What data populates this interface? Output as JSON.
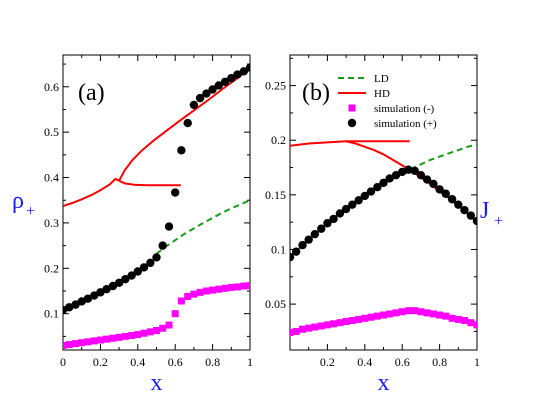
{
  "chart_data": [
    {
      "type": "line",
      "panel_label": "(a)",
      "xlabel": "x",
      "ylabel_main": "ρ",
      "ylabel_sub": "+",
      "xlim": [
        0,
        1
      ],
      "ylim": [
        0.02,
        0.67
      ],
      "xticks": [
        0,
        0.2,
        0.4,
        0.6,
        0.8,
        1
      ],
      "xtick_labels": [
        "0",
        "0.2",
        "0.4",
        "0.6",
        "0.8",
        "1"
      ],
      "yticks": [
        0.1,
        0.2,
        0.3,
        0.4,
        0.5,
        0.6
      ],
      "ytick_labels": [
        "0.1",
        "0.2",
        "0.3",
        "0.4",
        "0.5",
        "0.6"
      ],
      "colors": {
        "LD": "#1a9a1a",
        "HD": "#ff0000",
        "sim_minus": "#ff00ff",
        "sim_plus": "#000000"
      },
      "series": [
        {
          "key": "LD",
          "style": "dashed",
          "x": [
            0.5,
            0.55,
            0.6,
            0.65,
            0.7,
            0.75,
            0.8,
            0.85,
            0.9,
            0.95,
            1.0
          ],
          "y": [
            0.232,
            0.248,
            0.262,
            0.276,
            0.288,
            0.3,
            0.311,
            0.322,
            0.332,
            0.341,
            0.35
          ]
        },
        {
          "key": "HD",
          "style": "solid",
          "x": [
            0.0,
            0.05,
            0.1,
            0.15,
            0.2,
            0.25,
            0.28,
            0.3,
            0.33,
            0.38,
            0.45,
            0.5,
            0.55,
            0.6,
            0.63
          ],
          "y": [
            0.337,
            0.344,
            0.352,
            0.361,
            0.372,
            0.385,
            0.397,
            0.393,
            0.387,
            0.384,
            0.383,
            0.383,
            0.383,
            0.383,
            0.383
          ]
        },
        {
          "key": "HD",
          "style": "solid",
          "x": [
            0.3,
            0.33,
            0.37,
            0.42,
            0.48,
            0.55,
            0.62,
            0.7,
            0.78,
            0.85,
            0.92,
            1.0
          ],
          "y": [
            0.393,
            0.416,
            0.438,
            0.459,
            0.48,
            0.502,
            0.524,
            0.548,
            0.572,
            0.594,
            0.615,
            0.64
          ]
        },
        {
          "key": "sim_plus",
          "style": "marker-circle",
          "x": [
            0.0,
            0.033,
            0.067,
            0.1,
            0.133,
            0.167,
            0.2,
            0.233,
            0.267,
            0.3,
            0.333,
            0.367,
            0.4,
            0.433,
            0.467,
            0.5,
            0.533,
            0.567,
            0.6,
            0.633,
            0.667,
            0.7,
            0.733,
            0.767,
            0.8,
            0.833,
            0.867,
            0.9,
            0.933,
            0.967,
            1.0
          ],
          "y": [
            0.108,
            0.114,
            0.12,
            0.127,
            0.133,
            0.14,
            0.147,
            0.154,
            0.161,
            0.168,
            0.176,
            0.184,
            0.193,
            0.202,
            0.212,
            0.224,
            0.25,
            0.292,
            0.367,
            0.46,
            0.52,
            0.56,
            0.575,
            0.585,
            0.594,
            0.603,
            0.611,
            0.619,
            0.627,
            0.634,
            0.642
          ]
        },
        {
          "key": "sim_minus",
          "style": "marker-square",
          "x": [
            0.0,
            0.033,
            0.067,
            0.1,
            0.133,
            0.167,
            0.2,
            0.233,
            0.267,
            0.3,
            0.333,
            0.367,
            0.4,
            0.433,
            0.467,
            0.5,
            0.533,
            0.567,
            0.6,
            0.633,
            0.667,
            0.7,
            0.733,
            0.767,
            0.8,
            0.833,
            0.867,
            0.9,
            0.933,
            0.967,
            1.0
          ],
          "y": [
            0.03,
            0.032,
            0.034,
            0.036,
            0.038,
            0.04,
            0.042,
            0.044,
            0.046,
            0.048,
            0.05,
            0.052,
            0.054,
            0.057,
            0.06,
            0.063,
            0.068,
            0.075,
            0.1,
            0.128,
            0.138,
            0.143,
            0.147,
            0.15,
            0.152,
            0.154,
            0.156,
            0.158,
            0.159,
            0.161,
            0.162
          ]
        }
      ]
    },
    {
      "type": "line",
      "panel_label": "(b)",
      "xlabel": "x",
      "ylabel_main": "J",
      "ylabel_sub": "+",
      "xlim": [
        0,
        1
      ],
      "ylim": [
        0.008,
        0.278
      ],
      "xticks": [
        0.2,
        0.4,
        0.6,
        0.8,
        1
      ],
      "xtick_labels": [
        "0.2",
        "0.4",
        "0.6",
        "0.8",
        "1"
      ],
      "yticks": [
        0.05,
        0.1,
        0.15,
        0.2,
        0.25
      ],
      "ytick_labels": [
        "0.05",
        "0.1",
        "0.15",
        "0.2",
        "0.25"
      ],
      "colors": {
        "LD": "#1a9a1a",
        "HD": "#ff0000",
        "sim_minus": "#ff00ff",
        "sim_plus": "#000000"
      },
      "legend": [
        {
          "key": "LD",
          "label": "LD",
          "style": "dashed"
        },
        {
          "key": "HD",
          "label": "HD",
          "style": "solid"
        },
        {
          "key": "sim_minus",
          "label": "simulation (-)",
          "style": "marker-square"
        },
        {
          "key": "sim_plus",
          "label": "simulation (+)",
          "style": "marker-circle"
        }
      ],
      "series": [
        {
          "key": "LD",
          "style": "dashed",
          "x": [
            0.0,
            0.05,
            0.1,
            0.15,
            0.2,
            0.25,
            0.3,
            0.35,
            0.4,
            0.45,
            0.5,
            0.55,
            0.6,
            0.65,
            0.7,
            0.75,
            0.8,
            0.85,
            0.9,
            0.95,
            1.0
          ],
          "y": [
            0.093,
            0.101,
            0.109,
            0.117,
            0.124,
            0.131,
            0.138,
            0.144,
            0.15,
            0.156,
            0.161,
            0.166,
            0.17,
            0.174,
            0.178,
            0.182,
            0.185,
            0.188,
            0.191,
            0.194,
            0.196
          ]
        },
        {
          "key": "HD",
          "style": "solid",
          "x": [
            0.0,
            0.1,
            0.2,
            0.3,
            0.4,
            0.5,
            0.6,
            0.64
          ],
          "y": [
            0.195,
            0.197,
            0.198,
            0.199,
            0.199,
            0.199,
            0.199,
            0.199
          ]
        },
        {
          "key": "HD",
          "style": "solid",
          "x": [
            0.3,
            0.35,
            0.4,
            0.45,
            0.5,
            0.55,
            0.6,
            0.65,
            0.7,
            0.75,
            0.8,
            0.85,
            0.9,
            0.95,
            1.0
          ],
          "y": [
            0.199,
            0.197,
            0.194,
            0.191,
            0.187,
            0.182,
            0.177,
            0.172,
            0.166,
            0.16,
            0.153,
            0.147,
            0.14,
            0.133,
            0.125
          ]
        },
        {
          "key": "sim_plus",
          "style": "marker-circle",
          "x": [
            0.0,
            0.033,
            0.067,
            0.1,
            0.133,
            0.167,
            0.2,
            0.233,
            0.267,
            0.3,
            0.333,
            0.367,
            0.4,
            0.433,
            0.467,
            0.5,
            0.533,
            0.567,
            0.6,
            0.633,
            0.667,
            0.7,
            0.733,
            0.767,
            0.8,
            0.833,
            0.867,
            0.9,
            0.933,
            0.967,
            1.0
          ],
          "y": [
            0.093,
            0.098,
            0.104,
            0.109,
            0.114,
            0.119,
            0.124,
            0.128,
            0.133,
            0.137,
            0.141,
            0.145,
            0.149,
            0.153,
            0.157,
            0.161,
            0.165,
            0.168,
            0.171,
            0.173,
            0.172,
            0.168,
            0.164,
            0.16,
            0.155,
            0.151,
            0.146,
            0.141,
            0.136,
            0.131,
            0.126
          ]
        },
        {
          "key": "sim_minus",
          "style": "marker-square",
          "x": [
            0.0,
            0.033,
            0.067,
            0.1,
            0.133,
            0.167,
            0.2,
            0.233,
            0.267,
            0.3,
            0.333,
            0.367,
            0.4,
            0.433,
            0.467,
            0.5,
            0.533,
            0.567,
            0.6,
            0.633,
            0.667,
            0.7,
            0.733,
            0.767,
            0.8,
            0.833,
            0.867,
            0.9,
            0.933,
            0.967,
            1.0
          ],
          "y": [
            0.024,
            0.025,
            0.027,
            0.028,
            0.029,
            0.03,
            0.031,
            0.032,
            0.033,
            0.034,
            0.035,
            0.036,
            0.037,
            0.038,
            0.039,
            0.04,
            0.041,
            0.042,
            0.043,
            0.044,
            0.044,
            0.043,
            0.042,
            0.041,
            0.04,
            0.039,
            0.037,
            0.036,
            0.035,
            0.033,
            0.031
          ]
        }
      ]
    }
  ]
}
